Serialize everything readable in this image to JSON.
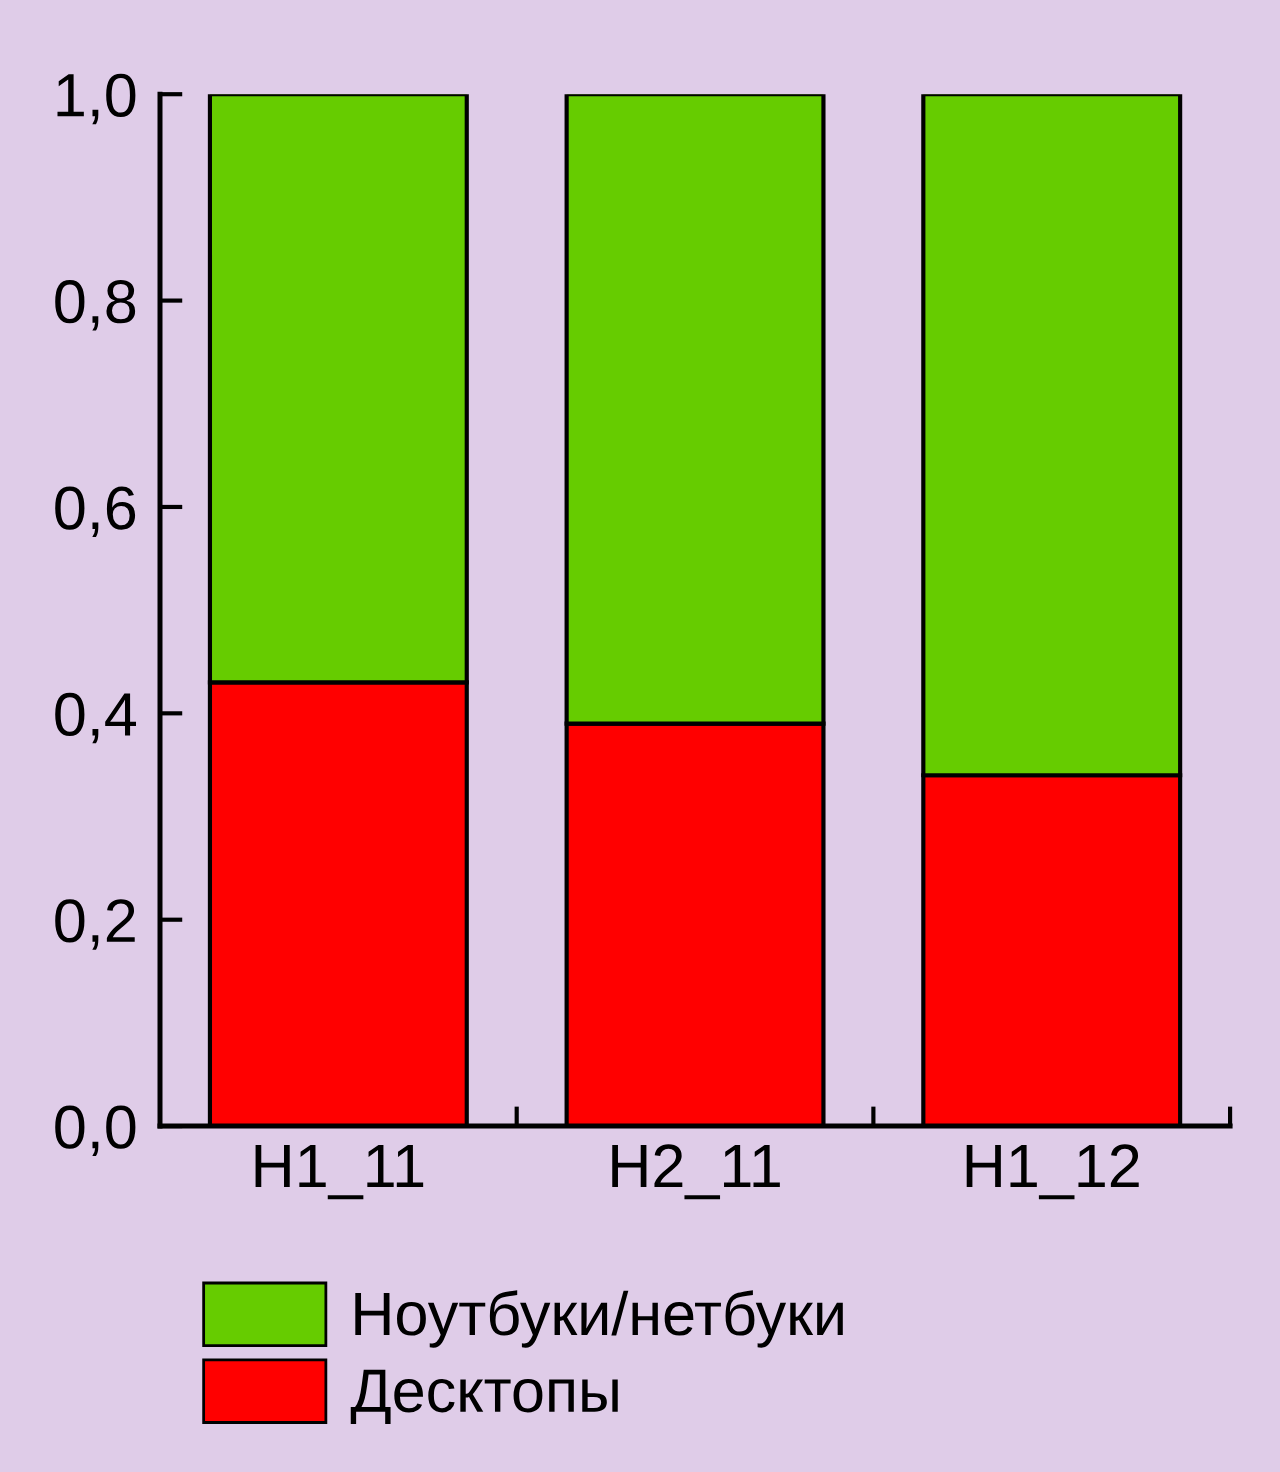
{
  "chart_data": {
    "type": "bar",
    "stacked": true,
    "categories": [
      "H1_11",
      "H2_11",
      "H1_12"
    ],
    "series": [
      {
        "name": "Десктопы",
        "color": "#ff0000",
        "values": [
          0.43,
          0.39,
          0.34
        ]
      },
      {
        "name": "Ноутбуки/нетбуки",
        "color": "#66cc00",
        "values": [
          0.57,
          0.61,
          0.66
        ]
      }
    ],
    "ylim": [
      0,
      1
    ],
    "yticks": [
      {
        "value": 0,
        "label": "0,0"
      },
      {
        "value": 0.2,
        "label": "0,2"
      },
      {
        "value": 0.4,
        "label": "0,4"
      },
      {
        "value": 0.6,
        "label": "0,6"
      },
      {
        "value": 0.8,
        "label": "0,8"
      },
      {
        "value": 1,
        "label": "1,0"
      }
    ],
    "grid": false,
    "legend": "bottom"
  }
}
